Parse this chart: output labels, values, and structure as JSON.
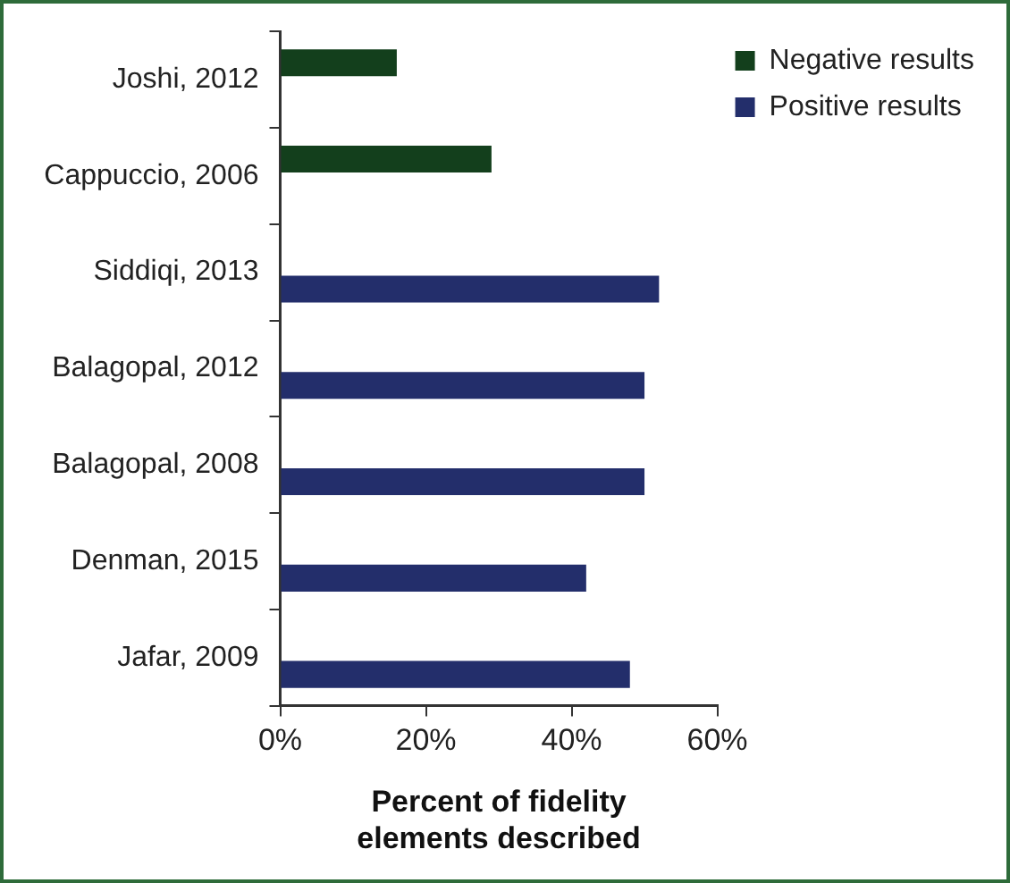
{
  "chart_data": {
    "type": "bar",
    "orientation": "horizontal",
    "xlabel": "Percent of fidelity elements described",
    "categories": [
      "Joshi, 2012",
      "Cappuccio, 2006",
      "Siddiqi, 2013",
      "Balagopal, 2012",
      "Balagopal, 2008",
      "Denman, 2015",
      "Jafar, 2009"
    ],
    "series": [
      {
        "name": "Negative results",
        "color": "#133f1c",
        "values": [
          16,
          29,
          null,
          null,
          null,
          null,
          null
        ]
      },
      {
        "name": "Positive results",
        "color": "#232e6b",
        "values": [
          null,
          null,
          52,
          50,
          50,
          42,
          48
        ]
      }
    ],
    "xlim": [
      0,
      60
    ],
    "xticks": [
      {
        "value": 0,
        "label": "0%"
      },
      {
        "value": 20,
        "label": "20%"
      },
      {
        "value": 40,
        "label": "40%"
      },
      {
        "value": 60,
        "label": "60%"
      }
    ],
    "grid": false,
    "legend": "top right"
  }
}
